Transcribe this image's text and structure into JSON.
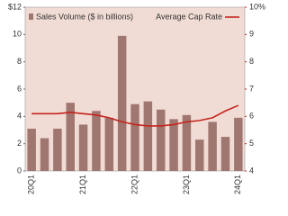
{
  "chart_data": {
    "type": "bar",
    "categories": [
      "'20Q1",
      null,
      null,
      null,
      "'21Q1",
      null,
      null,
      null,
      "'22Q1",
      null,
      null,
      null,
      "'23Q1",
      null,
      null,
      null,
      "'24Q1"
    ],
    "series": [
      {
        "name": "Sales Volume ($ in billions)",
        "color": "#a07670",
        "values": [
          3.1,
          2.4,
          3.1,
          5.0,
          3.4,
          4.4,
          3.9,
          9.9,
          4.9,
          5.1,
          4.5,
          3.8,
          4.1,
          2.3,
          3.6,
          2.5,
          3.9
        ]
      },
      {
        "name": "Average Cap Rate",
        "color": "#c4241c",
        "axis": "y2",
        "type": "line",
        "values": [
          6.1,
          6.1,
          6.1,
          6.15,
          6.1,
          6.05,
          5.95,
          5.8,
          5.7,
          5.65,
          5.65,
          5.7,
          5.8,
          5.85,
          5.95,
          6.2,
          6.4
        ]
      }
    ],
    "ylim": [
      0,
      12
    ],
    "yticks": [
      0,
      2,
      4,
      6,
      8,
      10,
      {
        "value": 12,
        "label": "$12"
      }
    ],
    "y2lim": [
      4,
      10
    ],
    "y2ticks": [
      4,
      5,
      6,
      7,
      8,
      9,
      {
        "value": 10,
        "label": "10%"
      }
    ]
  }
}
